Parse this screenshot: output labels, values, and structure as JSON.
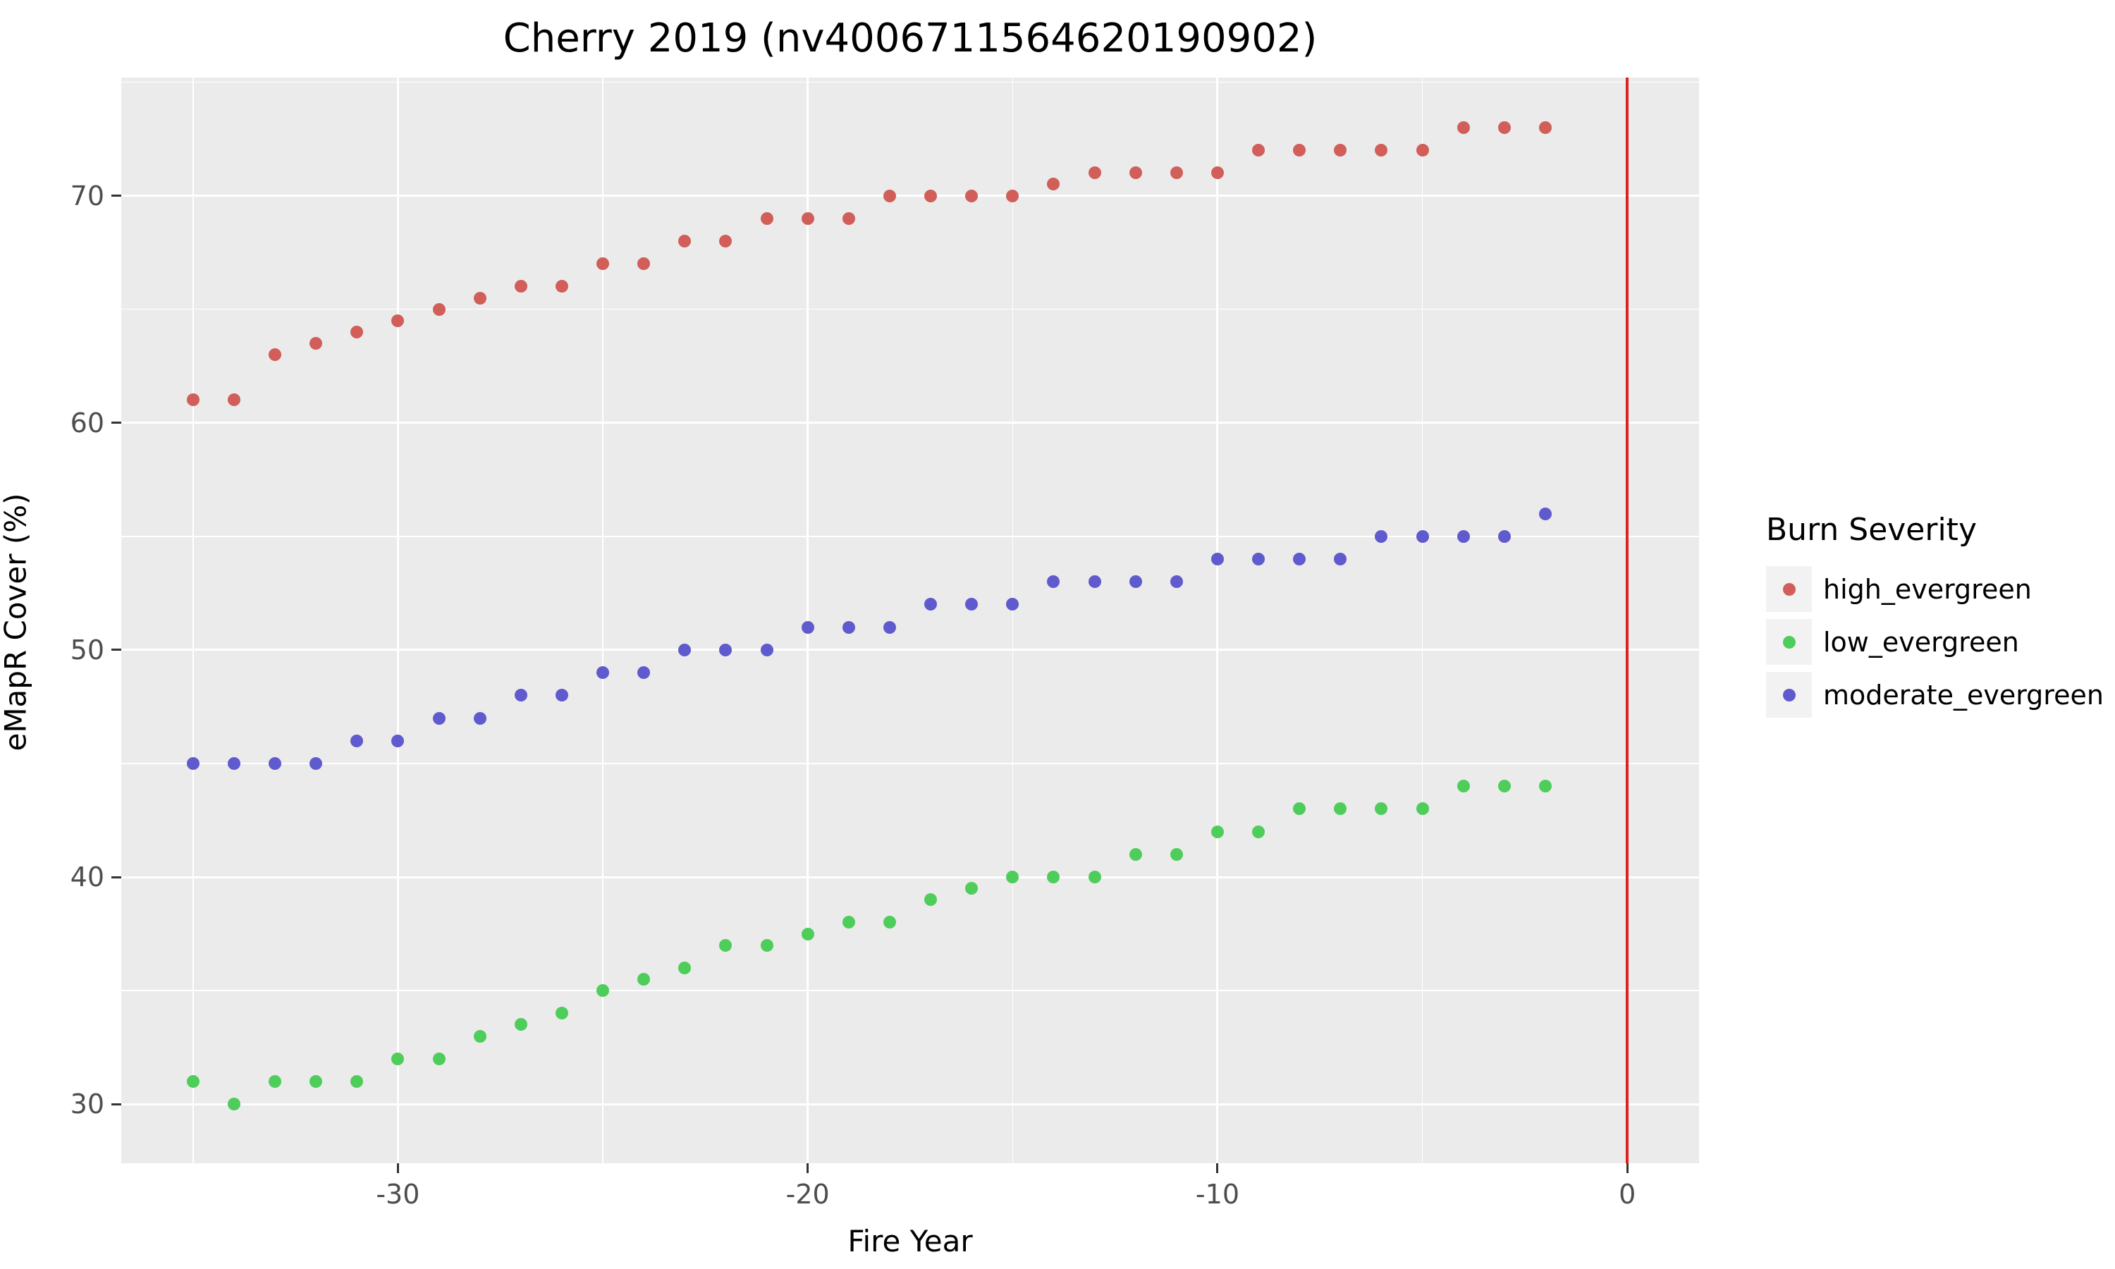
{
  "title": "Cherry 2019 (nv4006711564620190902)",
  "axes": {
    "x": {
      "label": "Fire Year",
      "major_ticks": [
        -30,
        -20,
        -10,
        0
      ],
      "minor_ticks": [
        -35,
        -25,
        -15,
        -5
      ],
      "lim": [
        -36.75,
        1.75
      ]
    },
    "y": {
      "label": "eMapR Cover (%)",
      "major_ticks": [
        30,
        40,
        50,
        60,
        70
      ],
      "minor_ticks": [
        35,
        45,
        55,
        65,
        75
      ],
      "lim": [
        27.4,
        75.2
      ]
    }
  },
  "reference_line": {
    "x": 0,
    "color": "#e02020"
  },
  "legend": {
    "title": "Burn Severity",
    "items": [
      {
        "label": "high_evergreen",
        "color": "#d15e59"
      },
      {
        "label": "low_evergreen",
        "color": "#4ecd5a"
      },
      {
        "label": "moderate_evergreen",
        "color": "#5f5acd"
      }
    ]
  },
  "colors": {
    "panel_background": "#EBEBEB",
    "grid": "#ffffff",
    "tick_label": "#4D4D4D",
    "legend_key_background": "#F2F2F2"
  },
  "chart_data": {
    "type": "scatter",
    "title": "Cherry 2019 (nv4006711564620190902)",
    "xlabel": "Fire Year",
    "ylabel": "eMapR Cover (%)",
    "xlim": [
      -36.75,
      1.75
    ],
    "ylim": [
      27.4,
      75.2
    ],
    "grid": "on",
    "legend_position": "right",
    "legend_title": "Burn Severity",
    "x": [
      -35,
      -34,
      -33,
      -32,
      -31,
      -30,
      -29,
      -28,
      -27,
      -26,
      -25,
      -24,
      -23,
      -22,
      -21,
      -20,
      -19,
      -18,
      -17,
      -16,
      -15,
      -14,
      -13,
      -12,
      -11,
      -10,
      -9,
      -8,
      -7,
      -6,
      -5,
      -4,
      -3,
      -2
    ],
    "series": [
      {
        "name": "high_evergreen",
        "color": "#d15e59",
        "values": [
          61,
          61,
          63,
          63.5,
          64,
          64.5,
          65,
          65.5,
          66,
          66,
          67,
          67,
          68,
          68,
          69,
          69,
          69,
          70,
          70,
          70,
          70,
          70.5,
          71,
          71,
          71,
          71,
          72,
          72,
          72,
          72,
          72,
          73,
          73,
          73
        ]
      },
      {
        "name": "low_evergreen",
        "color": "#4ecd5a",
        "values": [
          31,
          30,
          31,
          31,
          31,
          32,
          32,
          33,
          33.5,
          34,
          35,
          35.5,
          36,
          37,
          37,
          37.5,
          38,
          38,
          39,
          39.5,
          40,
          40,
          40,
          41,
          41,
          42,
          42,
          43,
          43,
          43,
          43,
          44,
          44,
          44
        ]
      },
      {
        "name": "moderate_evergreen",
        "color": "#5f5acd",
        "values": [
          45,
          45,
          45,
          45,
          46,
          46,
          47,
          47,
          48,
          48,
          49,
          49,
          50,
          50,
          50,
          51,
          51,
          51,
          52,
          52,
          52,
          53,
          53,
          53,
          53,
          54,
          54,
          54,
          54,
          55,
          55,
          55,
          55,
          56
        ]
      }
    ],
    "reference_vline_x": 0
  }
}
